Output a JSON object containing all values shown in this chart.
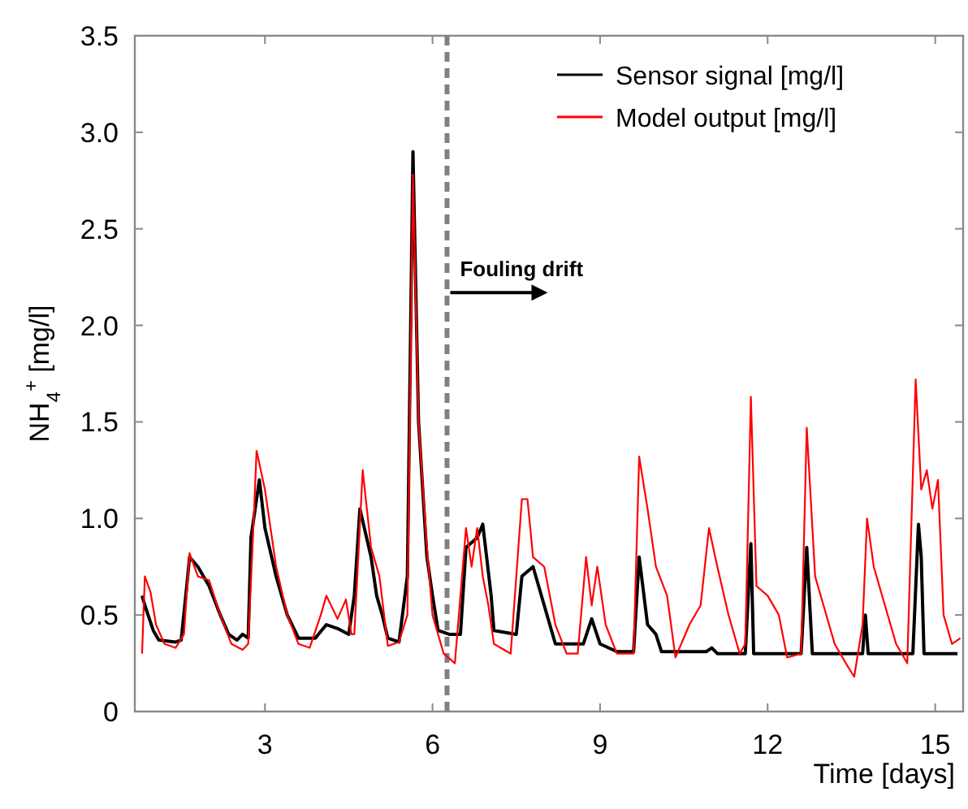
{
  "chart_data": {
    "type": "line",
    "xlabel": "Time [days]",
    "ylabel": "NH$_{4}$$^{+}$ [mg/l]",
    "xlim": [
      0.67,
      15.5
    ],
    "ylim": [
      0,
      3.5
    ],
    "xticks": [
      3,
      6,
      9,
      12,
      15
    ],
    "yticks": [
      0,
      0.5,
      {
        "value": 1,
        "label": "1.0"
      },
      1.5,
      {
        "value": 2,
        "label": "2.0"
      },
      2.5,
      {
        "value": 3,
        "label": "3.0"
      },
      3.5
    ],
    "grid": false,
    "legend": "top right",
    "ref_lines": [
      {
        "axis": "x",
        "value": 6.26,
        "color": "#808080",
        "line_style": "dashed"
      }
    ],
    "annotations": [
      {
        "text": "Fouling drift",
        "x": 6.26,
        "y": 2.17
      }
    ],
    "series": [
      {
        "name": "Sensor signal [mg/l]",
        "color": "#000000",
        "x": [
          0.8,
          0.85,
          1.0,
          1.1,
          1.4,
          1.5,
          1.6,
          1.65,
          1.8,
          2.0,
          2.2,
          2.35,
          2.5,
          2.6,
          2.7,
          2.75,
          2.9,
          3.0,
          3.2,
          3.4,
          3.6,
          3.9,
          4.1,
          4.3,
          4.5,
          4.6,
          4.7,
          4.9,
          5.0,
          5.1,
          5.2,
          5.4,
          5.55,
          5.65,
          5.75,
          5.9,
          6.0,
          6.1,
          6.3,
          6.5,
          6.6,
          6.8,
          6.9,
          7.05,
          7.1,
          7.5,
          7.6,
          7.8,
          8.0,
          8.2,
          8.7,
          8.85,
          9.0,
          9.3,
          9.6,
          9.7,
          9.85,
          10.0,
          10.1,
          10.9,
          11.0,
          11.1,
          11.6,
          11.7,
          11.75,
          12.6,
          12.7,
          12.8,
          13.7,
          13.75,
          13.8,
          14.6,
          14.7,
          14.75,
          14.8,
          15.4
        ],
        "values": [
          0.6,
          0.55,
          0.42,
          0.37,
          0.36,
          0.37,
          0.65,
          0.8,
          0.75,
          0.65,
          0.5,
          0.4,
          0.37,
          0.4,
          0.38,
          0.9,
          1.2,
          0.95,
          0.7,
          0.5,
          0.38,
          0.38,
          0.45,
          0.43,
          0.4,
          0.6,
          1.05,
          0.8,
          0.6,
          0.5,
          0.38,
          0.36,
          0.7,
          2.9,
          1.5,
          0.8,
          0.6,
          0.42,
          0.4,
          0.4,
          0.85,
          0.9,
          0.97,
          0.6,
          0.42,
          0.4,
          0.7,
          0.75,
          0.55,
          0.35,
          0.35,
          0.48,
          0.35,
          0.31,
          0.31,
          0.8,
          0.45,
          0.4,
          0.31,
          0.31,
          0.33,
          0.3,
          0.3,
          0.87,
          0.3,
          0.3,
          0.85,
          0.3,
          0.3,
          0.5,
          0.3,
          0.3,
          0.97,
          0.8,
          0.3,
          0.3
        ]
      },
      {
        "name": "Model output [mg/l]",
        "color": "#ff0000",
        "x": [
          0.8,
          0.85,
          0.95,
          1.05,
          1.2,
          1.4,
          1.55,
          1.65,
          1.8,
          2.0,
          2.2,
          2.4,
          2.6,
          2.7,
          2.8,
          2.85,
          3.0,
          3.2,
          3.4,
          3.6,
          3.8,
          4.0,
          4.1,
          4.3,
          4.45,
          4.55,
          4.6,
          4.75,
          4.9,
          5.05,
          5.2,
          5.4,
          5.55,
          5.65,
          5.75,
          5.9,
          6.0,
          6.2,
          6.4,
          6.6,
          6.7,
          6.8,
          6.9,
          7.0,
          7.1,
          7.4,
          7.6,
          7.7,
          7.8,
          8.0,
          8.2,
          8.4,
          8.6,
          8.75,
          8.85,
          8.95,
          9.1,
          9.3,
          9.6,
          9.7,
          9.85,
          10.0,
          10.2,
          10.35,
          10.6,
          10.8,
          10.95,
          11.1,
          11.3,
          11.5,
          11.6,
          11.7,
          11.8,
          12.0,
          12.2,
          12.35,
          12.6,
          12.7,
          12.85,
          13.0,
          13.2,
          13.4,
          13.55,
          13.7,
          13.78,
          13.9,
          14.1,
          14.3,
          14.5,
          14.65,
          14.75,
          14.85,
          14.95,
          15.05,
          15.15,
          15.3,
          15.45
        ],
        "values": [
          0.3,
          0.7,
          0.62,
          0.45,
          0.35,
          0.33,
          0.4,
          0.82,
          0.7,
          0.68,
          0.5,
          0.35,
          0.32,
          0.35,
          1.0,
          1.35,
          1.15,
          0.75,
          0.5,
          0.35,
          0.33,
          0.5,
          0.6,
          0.48,
          0.58,
          0.4,
          0.4,
          1.25,
          0.85,
          0.7,
          0.34,
          0.36,
          0.5,
          2.78,
          1.5,
          0.85,
          0.5,
          0.3,
          0.25,
          0.95,
          0.75,
          0.95,
          0.7,
          0.55,
          0.35,
          0.3,
          1.1,
          1.1,
          0.8,
          0.75,
          0.45,
          0.3,
          0.3,
          0.8,
          0.55,
          0.75,
          0.45,
          0.3,
          0.3,
          1.32,
          1.05,
          0.75,
          0.6,
          0.28,
          0.45,
          0.55,
          0.95,
          0.75,
          0.5,
          0.3,
          0.35,
          1.63,
          0.65,
          0.6,
          0.5,
          0.28,
          0.3,
          1.47,
          0.7,
          0.55,
          0.35,
          0.25,
          0.18,
          0.45,
          1.0,
          0.75,
          0.55,
          0.35,
          0.25,
          1.72,
          1.15,
          1.25,
          1.05,
          1.2,
          0.5,
          0.35,
          0.38
        ]
      }
    ]
  }
}
